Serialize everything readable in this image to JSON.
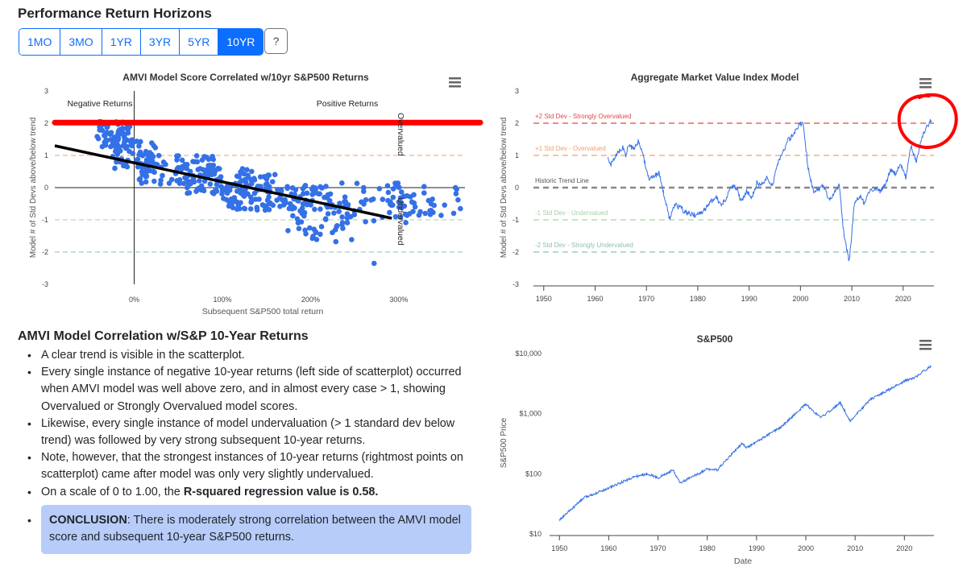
{
  "header": {
    "title": "Performance Return Horizons",
    "tabs": [
      "1MO",
      "3MO",
      "1YR",
      "3YR",
      "5YR",
      "10YR"
    ],
    "active_tab": "10YR",
    "help_label": "?"
  },
  "colors": {
    "accent": "#0d6efd",
    "scatter_point": "#3470e6",
    "regression_line": "#000000",
    "annotation_red": "#ff0000",
    "overvalued_2": "#e04848",
    "overvalued_1": "#f0a070",
    "trend": "#888888",
    "undervalued_1": "#a3d3a3",
    "undervalued_2": "#8ac0b0",
    "conclusion_bg": "#b7ccf8"
  },
  "chart_data": [
    {
      "id": "scatter",
      "type": "scatter",
      "title": "AMVI Model Score Correlated w/10yr S&P500 Returns",
      "xlabel": "Subsequent S&P500 total return",
      "ylabel": "Model # of Std Devs above/below trend",
      "xlim": [
        -90,
        375
      ],
      "ylim": [
        -3,
        3
      ],
      "x_ticks": [
        0,
        100,
        200,
        300
      ],
      "x_tick_labels": [
        "0%",
        "100%",
        "200%",
        "300%"
      ],
      "y_ticks": [
        3,
        2,
        1,
        0,
        -1,
        -2,
        -3
      ],
      "y_tick_labels": [
        "3",
        "2",
        "1",
        "0",
        "-1",
        "-2",
        "-3"
      ],
      "region_labels": {
        "negative": "Negative Returns",
        "positive": "Positive Returns"
      },
      "threshold_labels": {
        "overvalued": "Overvalued",
        "undervalued": "Undervalued"
      },
      "reference_lines": [
        2,
        1,
        -1,
        -2
      ],
      "regression": {
        "x": [
          -90,
          292
        ],
        "y": [
          1.3,
          -0.95
        ]
      },
      "annotation_line_y": 2.02,
      "clusters": [
        {
          "x": [
            -42,
            -2
          ],
          "y": [
            1.25,
            2.05
          ],
          "n": 60
        },
        {
          "x": [
            -25,
            25
          ],
          "y": [
            0.6,
            1.5
          ],
          "n": 60
        },
        {
          "x": [
            5,
            90
          ],
          "y": [
            0.1,
            1.0
          ],
          "n": 80
        },
        {
          "x": [
            60,
            160
          ],
          "y": [
            -0.2,
            0.6
          ],
          "n": 90
        },
        {
          "x": [
            100,
            230
          ],
          "y": [
            -0.7,
            0.1
          ],
          "n": 120
        },
        {
          "x": [
            170,
            250
          ],
          "y": [
            -1.9,
            -0.6
          ],
          "n": 40
        },
        {
          "x": [
            230,
            320
          ],
          "y": [
            -1.1,
            0.15
          ],
          "n": 60
        },
        {
          "x": [
            300,
            370
          ],
          "y": [
            -0.9,
            0.05
          ],
          "n": 25
        }
      ],
      "extra_points": [
        [
          272,
          -2.35
        ],
        [
          330,
          -0.8
        ],
        [
          340,
          -0.55
        ]
      ]
    },
    {
      "id": "amvi",
      "type": "line",
      "title": "Aggregate Market Value Index Model",
      "ylabel": "Model # of Std Devs above/below trend",
      "xlim": [
        1948,
        2026
      ],
      "ylim": [
        -3,
        3
      ],
      "x_ticks": [
        1950,
        1960,
        1970,
        1980,
        1990,
        2000,
        2010,
        2020
      ],
      "y_ticks": [
        3,
        2,
        1,
        0,
        -1,
        -2,
        -3
      ],
      "y_tick_labels": [
        "3",
        "2",
        "1",
        "0",
        "-1",
        "-2",
        "-3"
      ],
      "bands": [
        {
          "y": 2,
          "label": "+2 Std Dev - Strongly Overvalued",
          "color": "#e04848"
        },
        {
          "y": 1,
          "label": "+1 Std Dev - Overvalued",
          "color": "#f0a070"
        },
        {
          "y": 0,
          "label": "Historic Trend Line",
          "color": "#888888"
        },
        {
          "y": -1,
          "label": "-1 Std Dev - Undervalued",
          "color": "#a3d3a3"
        },
        {
          "y": -2,
          "label": "-2 Std Dev - Strongly Undervalued",
          "color": "#8ac0b0"
        }
      ],
      "anchors": {
        "x": [
          1962.5,
          1963,
          1964.5,
          1965.5,
          1966,
          1966.5,
          1967.5,
          1968.5,
          1969.5,
          1970.5,
          1971.5,
          1972.5,
          1973.5,
          1974.5,
          1975.5,
          1976.5,
          1977.5,
          1978.5,
          1979.5,
          1980.5,
          1981.5,
          1982.5,
          1983.5,
          1984.5,
          1985.5,
          1986.5,
          1987.5,
          1988.5,
          1989.5,
          1990.5,
          1991.5,
          1992.5,
          1993.5,
          1994.5,
          1995.5,
          1996.5,
          1997.5,
          1998.5,
          1999.5,
          2000.5,
          2001.5,
          2002.5,
          2003.5,
          2004.5,
          2005.5,
          2006.5,
          2007.5,
          2008.5,
          2009.5,
          2010.5,
          2011.5,
          2012.5,
          2013.5,
          2014.5,
          2015.5,
          2016.5,
          2017.5,
          2018.5,
          2019.5,
          2020.5,
          2021.5,
          2022.5,
          2023.5,
          2024.5,
          2025.5
        ],
        "y": [
          0.9,
          0.7,
          1.1,
          1.25,
          1.0,
          1.3,
          1.2,
          1.45,
          0.9,
          0.3,
          0.35,
          0.45,
          -0.3,
          -0.95,
          -0.55,
          -0.6,
          -0.75,
          -0.8,
          -0.85,
          -0.8,
          -0.65,
          -0.45,
          -0.25,
          -0.55,
          -0.35,
          0.05,
          0.0,
          -0.45,
          -0.1,
          -0.3,
          0.15,
          0.1,
          0.35,
          0.05,
          0.75,
          1.05,
          1.45,
          1.6,
          1.9,
          2.05,
          0.6,
          -0.1,
          -0.05,
          0.05,
          -0.35,
          -0.2,
          0.1,
          -1.5,
          -2.3,
          -0.5,
          -0.25,
          -0.5,
          -0.1,
          0.0,
          -0.1,
          0.05,
          0.55,
          0.45,
          0.7,
          0.3,
          1.3,
          0.8,
          1.45,
          1.85,
          2.1
        ]
      }
    },
    {
      "id": "sp500",
      "type": "line",
      "title": "S&P500",
      "xlabel": "Date",
      "ylabel": "S&P500 Price",
      "yscale": "log",
      "xlim": [
        1948,
        2026
      ],
      "ylim": [
        10,
        10000
      ],
      "x_ticks": [
        1950,
        1960,
        1970,
        1980,
        1990,
        2000,
        2010,
        2020
      ],
      "y_ticks": [
        10000,
        1000,
        100,
        10
      ],
      "y_tick_labels": [
        "$10,000",
        "$1,000",
        "$100",
        "$10"
      ],
      "anchors": {
        "x": [
          1950,
          1955,
          1960,
          1965,
          1968,
          1970,
          1973,
          1974.5,
          1980,
          1982,
          1987,
          1988,
          1990,
          1995,
          2000,
          2003,
          2007,
          2009,
          2013,
          2018,
          2020,
          2022,
          2025.5
        ],
        "y": [
          17,
          40,
          58,
          88,
          100,
          85,
          115,
          70,
          120,
          115,
          320,
          270,
          340,
          600,
          1450,
          850,
          1520,
          750,
          1700,
          2800,
          3500,
          3900,
          6300
        ]
      }
    }
  ]
}
